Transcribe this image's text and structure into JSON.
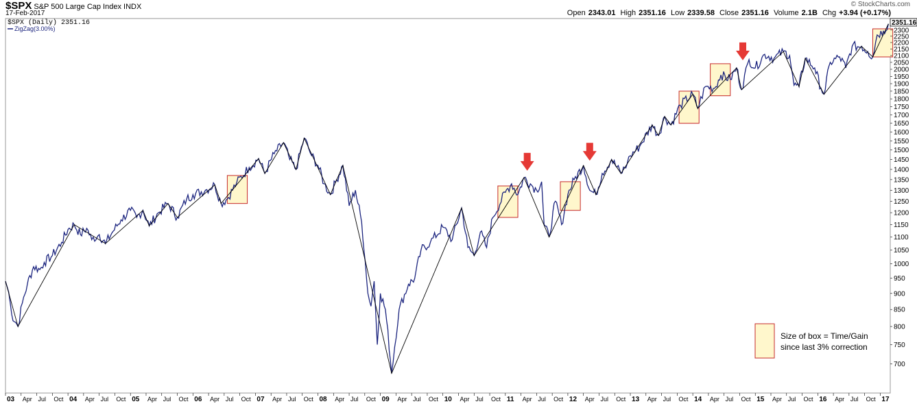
{
  "header": {
    "symbol": "$SPX",
    "description": "S&P 500 Large Cap Index INDX",
    "date": "17-Feb-2017",
    "brand": "© StockCharts.com",
    "open_label": "Open",
    "open": "2343.01",
    "high_label": "High",
    "high": "2351.16",
    "low_label": "Low",
    "low": "2339.58",
    "close_label": "Close",
    "close": "2351.16",
    "volume_label": "Volume",
    "volume": "2.1B",
    "chg_label": "Chg",
    "chg": "+3.94 (+0.17%)"
  },
  "legend": {
    "series1": "$SPX (Daily) 2351.16",
    "series2": "ZigZag(3.00%)"
  },
  "last_price_label": "2351.16",
  "annotation": {
    "line1": "Size of box = Time/Gain",
    "line2": "since last 3% correction"
  },
  "colors": {
    "price_line": "#1a237e",
    "zigzag": "#000000",
    "box_fill": "#fff7cc",
    "box_stroke": "#c62828",
    "arrow": "#e53935"
  },
  "chart_data": {
    "type": "line",
    "x_range": [
      "2003-01",
      "2017-02"
    ],
    "ylim": [
      650,
      2350
    ],
    "yticks": [
      700,
      750,
      800,
      850,
      900,
      950,
      1000,
      1050,
      1100,
      1150,
      1200,
      1250,
      1300,
      1350,
      1400,
      1450,
      1500,
      1550,
      1600,
      1650,
      1700,
      1750,
      1800,
      1850,
      1900,
      1950,
      2000,
      2050,
      2100,
      2150,
      2200,
      2250,
      2300
    ],
    "xticks": [
      {
        "t": 2003.0,
        "label": "03",
        "year": true
      },
      {
        "t": 2003.25,
        "label": "Apr"
      },
      {
        "t": 2003.5,
        "label": "Jul"
      },
      {
        "t": 2003.75,
        "label": "Oct"
      },
      {
        "t": 2004.0,
        "label": "04",
        "year": true
      },
      {
        "t": 2004.25,
        "label": "Apr"
      },
      {
        "t": 2004.5,
        "label": "Jul"
      },
      {
        "t": 2004.75,
        "label": "Oct"
      },
      {
        "t": 2005.0,
        "label": "05",
        "year": true
      },
      {
        "t": 2005.25,
        "label": "Apr"
      },
      {
        "t": 2005.5,
        "label": "Jul"
      },
      {
        "t": 2005.75,
        "label": "Oct"
      },
      {
        "t": 2006.0,
        "label": "06",
        "year": true
      },
      {
        "t": 2006.25,
        "label": "Apr"
      },
      {
        "t": 2006.5,
        "label": "Jul"
      },
      {
        "t": 2006.75,
        "label": "Oct"
      },
      {
        "t": 2007.0,
        "label": "07",
        "year": true
      },
      {
        "t": 2007.25,
        "label": "Apr"
      },
      {
        "t": 2007.5,
        "label": "Jul"
      },
      {
        "t": 2007.75,
        "label": "Oct"
      },
      {
        "t": 2008.0,
        "label": "08",
        "year": true
      },
      {
        "t": 2008.25,
        "label": "Apr"
      },
      {
        "t": 2008.5,
        "label": "Jul"
      },
      {
        "t": 2008.75,
        "label": "Oct"
      },
      {
        "t": 2009.0,
        "label": "09",
        "year": true
      },
      {
        "t": 2009.25,
        "label": "Apr"
      },
      {
        "t": 2009.5,
        "label": "Jul"
      },
      {
        "t": 2009.75,
        "label": "Oct"
      },
      {
        "t": 2010.0,
        "label": "10",
        "year": true
      },
      {
        "t": 2010.25,
        "label": "Apr"
      },
      {
        "t": 2010.5,
        "label": "Jul"
      },
      {
        "t": 2010.75,
        "label": "Oct"
      },
      {
        "t": 2011.0,
        "label": "11",
        "year": true
      },
      {
        "t": 2011.25,
        "label": "Apr"
      },
      {
        "t": 2011.5,
        "label": "Jul"
      },
      {
        "t": 2011.75,
        "label": "Oct"
      },
      {
        "t": 2012.0,
        "label": "12",
        "year": true
      },
      {
        "t": 2012.25,
        "label": "Apr"
      },
      {
        "t": 2012.5,
        "label": "Jul"
      },
      {
        "t": 2012.75,
        "label": "Oct"
      },
      {
        "t": 2013.0,
        "label": "13",
        "year": true
      },
      {
        "t": 2013.25,
        "label": "Apr"
      },
      {
        "t": 2013.5,
        "label": "Jul"
      },
      {
        "t": 2013.75,
        "label": "Oct"
      },
      {
        "t": 2014.0,
        "label": "14",
        "year": true
      },
      {
        "t": 2014.25,
        "label": "Apr"
      },
      {
        "t": 2014.5,
        "label": "Jul"
      },
      {
        "t": 2014.75,
        "label": "Oct"
      },
      {
        "t": 2015.0,
        "label": "15",
        "year": true
      },
      {
        "t": 2015.25,
        "label": "Apr"
      },
      {
        "t": 2015.5,
        "label": "Jul"
      },
      {
        "t": 2015.75,
        "label": "Oct"
      },
      {
        "t": 2016.0,
        "label": "16",
        "year": true
      },
      {
        "t": 2016.25,
        "label": "Apr"
      },
      {
        "t": 2016.5,
        "label": "Jul"
      },
      {
        "t": 2016.75,
        "label": "Oct"
      },
      {
        "t": 2017.0,
        "label": "17",
        "year": true
      }
    ],
    "series": [
      {
        "name": "$SPX (Daily)",
        "points": [
          [
            2003.0,
            940
          ],
          [
            2003.05,
            905
          ],
          [
            2003.1,
            835
          ],
          [
            2003.2,
            800
          ],
          [
            2003.27,
            870
          ],
          [
            2003.35,
            930
          ],
          [
            2003.45,
            990
          ],
          [
            2003.55,
            980
          ],
          [
            2003.62,
            1005
          ],
          [
            2003.75,
            1030
          ],
          [
            2003.9,
            1080
          ],
          [
            2004.0,
            1130
          ],
          [
            2004.1,
            1150
          ],
          [
            2004.2,
            1110
          ],
          [
            2004.3,
            1135
          ],
          [
            2004.38,
            1090
          ],
          [
            2004.5,
            1110
          ],
          [
            2004.6,
            1075
          ],
          [
            2004.7,
            1115
          ],
          [
            2004.85,
            1170
          ],
          [
            2005.0,
            1210
          ],
          [
            2005.1,
            1180
          ],
          [
            2005.2,
            1210
          ],
          [
            2005.3,
            1145
          ],
          [
            2005.45,
            1200
          ],
          [
            2005.6,
            1240
          ],
          [
            2005.75,
            1180
          ],
          [
            2005.9,
            1260
          ],
          [
            2006.0,
            1280
          ],
          [
            2006.2,
            1300
          ],
          [
            2006.35,
            1325
          ],
          [
            2006.45,
            1240
          ],
          [
            2006.55,
            1260
          ],
          [
            2006.7,
            1335
          ],
          [
            2006.9,
            1410
          ],
          [
            2007.05,
            1455
          ],
          [
            2007.15,
            1380
          ],
          [
            2007.3,
            1480
          ],
          [
            2007.45,
            1540
          ],
          [
            2007.55,
            1450
          ],
          [
            2007.65,
            1400
          ],
          [
            2007.78,
            1565
          ],
          [
            2007.9,
            1470
          ],
          [
            2008.0,
            1420
          ],
          [
            2008.1,
            1330
          ],
          [
            2008.2,
            1280
          ],
          [
            2008.3,
            1350
          ],
          [
            2008.4,
            1420
          ],
          [
            2008.5,
            1230
          ],
          [
            2008.6,
            1300
          ],
          [
            2008.7,
            1160
          ],
          [
            2008.8,
            900
          ],
          [
            2008.85,
            860
          ],
          [
            2008.9,
            940
          ],
          [
            2008.95,
            750
          ],
          [
            2009.0,
            900
          ],
          [
            2009.08,
            850
          ],
          [
            2009.18,
            677
          ],
          [
            2009.3,
            850
          ],
          [
            2009.45,
            930
          ],
          [
            2009.55,
            950
          ],
          [
            2009.65,
            1050
          ],
          [
            2009.8,
            1080
          ],
          [
            2010.0,
            1140
          ],
          [
            2010.15,
            1090
          ],
          [
            2010.3,
            1220
          ],
          [
            2010.4,
            1060
          ],
          [
            2010.5,
            1030
          ],
          [
            2010.6,
            1120
          ],
          [
            2010.7,
            1060
          ],
          [
            2010.8,
            1180
          ],
          [
            2011.0,
            1290
          ],
          [
            2011.1,
            1330
          ],
          [
            2011.2,
            1280
          ],
          [
            2011.3,
            1360
          ],
          [
            2011.4,
            1330
          ],
          [
            2011.5,
            1300
          ],
          [
            2011.58,
            1340
          ],
          [
            2011.62,
            1150
          ],
          [
            2011.7,
            1100
          ],
          [
            2011.8,
            1250
          ],
          [
            2011.9,
            1150
          ],
          [
            2012.0,
            1280
          ],
          [
            2012.1,
            1350
          ],
          [
            2012.25,
            1420
          ],
          [
            2012.35,
            1300
          ],
          [
            2012.45,
            1280
          ],
          [
            2012.55,
            1380
          ],
          [
            2012.7,
            1450
          ],
          [
            2012.85,
            1380
          ],
          [
            2012.95,
            1430
          ],
          [
            2013.0,
            1470
          ],
          [
            2013.15,
            1520
          ],
          [
            2013.35,
            1640
          ],
          [
            2013.45,
            1580
          ],
          [
            2013.55,
            1690
          ],
          [
            2013.65,
            1640
          ],
          [
            2013.8,
            1760
          ],
          [
            2014.0,
            1830
          ],
          [
            2014.08,
            1740
          ],
          [
            2014.2,
            1880
          ],
          [
            2014.35,
            1870
          ],
          [
            2014.45,
            1960
          ],
          [
            2014.6,
            1930
          ],
          [
            2014.7,
            2010
          ],
          [
            2014.78,
            1860
          ],
          [
            2014.9,
            2070
          ],
          [
            2015.0,
            2010
          ],
          [
            2015.15,
            2110
          ],
          [
            2015.3,
            2080
          ],
          [
            2015.45,
            2130
          ],
          [
            2015.55,
            2100
          ],
          [
            2015.62,
            1890
          ],
          [
            2015.7,
            1880
          ],
          [
            2015.8,
            2080
          ],
          [
            2015.95,
            2010
          ],
          [
            2016.05,
            1870
          ],
          [
            2016.1,
            1830
          ],
          [
            2016.2,
            2050
          ],
          [
            2016.35,
            2090
          ],
          [
            2016.45,
            2010
          ],
          [
            2016.55,
            2170
          ],
          [
            2016.7,
            2170
          ],
          [
            2016.8,
            2130
          ],
          [
            2016.88,
            2090
          ],
          [
            2016.95,
            2260
          ],
          [
            2017.05,
            2290
          ],
          [
            2017.13,
            2351
          ]
        ]
      },
      {
        "name": "ZigZag(3.00%)",
        "points": [
          [
            2003.0,
            940
          ],
          [
            2003.2,
            800
          ],
          [
            2004.1,
            1150
          ],
          [
            2004.6,
            1075
          ],
          [
            2005.2,
            1210
          ],
          [
            2005.3,
            1145
          ],
          [
            2005.6,
            1240
          ],
          [
            2005.75,
            1180
          ],
          [
            2006.35,
            1325
          ],
          [
            2006.45,
            1240
          ],
          [
            2007.05,
            1455
          ],
          [
            2007.15,
            1380
          ],
          [
            2007.45,
            1540
          ],
          [
            2007.65,
            1400
          ],
          [
            2007.78,
            1565
          ],
          [
            2008.2,
            1280
          ],
          [
            2008.4,
            1420
          ],
          [
            2009.18,
            677
          ],
          [
            2010.3,
            1220
          ],
          [
            2010.5,
            1030
          ],
          [
            2011.3,
            1360
          ],
          [
            2011.7,
            1100
          ],
          [
            2012.25,
            1420
          ],
          [
            2012.45,
            1280
          ],
          [
            2012.7,
            1450
          ],
          [
            2012.85,
            1380
          ],
          [
            2013.35,
            1640
          ],
          [
            2013.45,
            1580
          ],
          [
            2013.55,
            1690
          ],
          [
            2013.65,
            1640
          ],
          [
            2014.0,
            1830
          ],
          [
            2014.08,
            1740
          ],
          [
            2014.7,
            2010
          ],
          [
            2014.78,
            1860
          ],
          [
            2015.45,
            2130
          ],
          [
            2015.7,
            1880
          ],
          [
            2015.8,
            2080
          ],
          [
            2016.1,
            1830
          ],
          [
            2016.7,
            2170
          ],
          [
            2016.88,
            2090
          ],
          [
            2017.13,
            2351
          ]
        ]
      }
    ],
    "boxes": [
      {
        "t0": 2006.55,
        "t1": 2006.87,
        "v0": 1240,
        "v1": 1370
      },
      {
        "t0": 2010.88,
        "t1": 2011.2,
        "v0": 1180,
        "v1": 1320
      },
      {
        "t0": 2011.88,
        "t1": 2012.2,
        "v0": 1210,
        "v1": 1340
      },
      {
        "t0": 2013.78,
        "t1": 2014.1,
        "v0": 1650,
        "v1": 1850
      },
      {
        "t0": 2014.28,
        "t1": 2014.6,
        "v0": 1820,
        "v1": 2040
      },
      {
        "t0": 2016.88,
        "t1": 2017.2,
        "v0": 2090,
        "v1": 2310
      }
    ],
    "arrows": [
      {
        "t": 2011.35,
        "v": 1380
      },
      {
        "t": 2012.35,
        "v": 1430
      },
      {
        "t": 2014.8,
        "v": 2045
      }
    ]
  }
}
